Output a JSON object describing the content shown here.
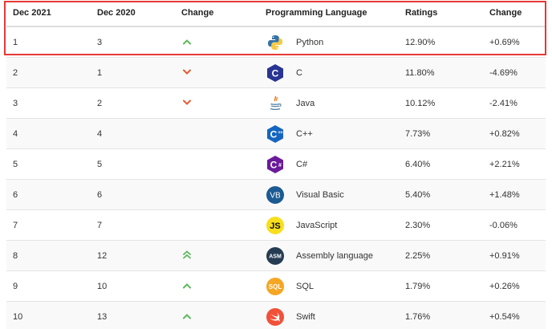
{
  "headers": [
    "Dec 2021",
    "Dec 2020",
    "Change",
    "Programming Language",
    "Ratings",
    "Change"
  ],
  "rows": [
    {
      "dec2021": "1",
      "dec2020": "3",
      "trend": "up",
      "language": "Python",
      "icon": "python-icon",
      "rating": "12.90%",
      "change": "+0.69%"
    },
    {
      "dec2021": "2",
      "dec2020": "1",
      "trend": "down",
      "language": "C",
      "icon": "c-icon",
      "rating": "11.80%",
      "change": "-4.69%"
    },
    {
      "dec2021": "3",
      "dec2020": "2",
      "trend": "down",
      "language": "Java",
      "icon": "java-icon",
      "rating": "10.12%",
      "change": "-2.41%"
    },
    {
      "dec2021": "4",
      "dec2020": "4",
      "trend": "none",
      "language": "C++",
      "icon": "cpp-icon",
      "rating": "7.73%",
      "change": "+0.82%"
    },
    {
      "dec2021": "5",
      "dec2020": "5",
      "trend": "none",
      "language": "C#",
      "icon": "csharp-icon",
      "rating": "6.40%",
      "change": "+2.21%"
    },
    {
      "dec2021": "6",
      "dec2020": "6",
      "trend": "none",
      "language": "Visual Basic",
      "icon": "visual-basic-icon",
      "rating": "5.40%",
      "change": "+1.48%"
    },
    {
      "dec2021": "7",
      "dec2020": "7",
      "trend": "none",
      "language": "JavaScript",
      "icon": "javascript-icon",
      "rating": "2.30%",
      "change": "-0.06%"
    },
    {
      "dec2021": "8",
      "dec2020": "12",
      "trend": "up-double",
      "language": "Assembly language",
      "icon": "assembly-icon",
      "rating": "2.25%",
      "change": "+0.91%"
    },
    {
      "dec2021": "9",
      "dec2020": "10",
      "trend": "up",
      "language": "SQL",
      "icon": "sql-icon",
      "rating": "1.79%",
      "change": "+0.26%"
    },
    {
      "dec2021": "10",
      "dec2020": "13",
      "trend": "up",
      "language": "Swift",
      "icon": "swift-icon",
      "rating": "1.76%",
      "change": "+0.54%"
    }
  ],
  "logo_text": {
    "c": "C",
    "cpp": "C",
    "csharp": "C",
    "visual_basic": "VB",
    "javascript": "JS",
    "assembly": "ASM",
    "sql": "SQL"
  },
  "colors": {
    "up": "#5cb85c",
    "down": "#e8582e",
    "highlight": "#e53935"
  }
}
